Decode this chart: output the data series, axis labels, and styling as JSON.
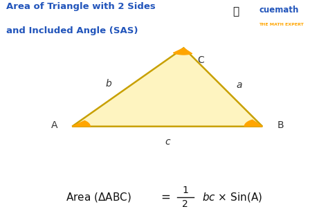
{
  "title_line1": "Area of Triangle with 2 Sides",
  "title_line2": "and Included Angle (SAS)",
  "title_color": "#2255BB",
  "title_fontsize": 9.5,
  "bg_color": "#ffffff",
  "triangle_fill": "#FEF4C0",
  "triangle_edge": "#C8A000",
  "triangle_edge_width": 1.8,
  "arc_color": "#FFA500",
  "arc_fill": "#FFA500",
  "vertex_A": [
    0.22,
    0.42
  ],
  "vertex_B": [
    0.8,
    0.42
  ],
  "vertex_C": [
    0.56,
    0.78
  ],
  "label_A": "A",
  "label_B": "B",
  "label_C": "C",
  "label_a": "a",
  "label_b": "b",
  "label_c": "c",
  "label_color": "#333333",
  "vertex_label_fontsize": 10,
  "side_label_fontsize": 10,
  "formula_fontsize": 11,
  "cuemath_text": "cuemath",
  "cuemath_color": "#2255BB",
  "cuemath_sub": "THE MATH EXPERT",
  "cuemath_sub_color": "#FFA500"
}
